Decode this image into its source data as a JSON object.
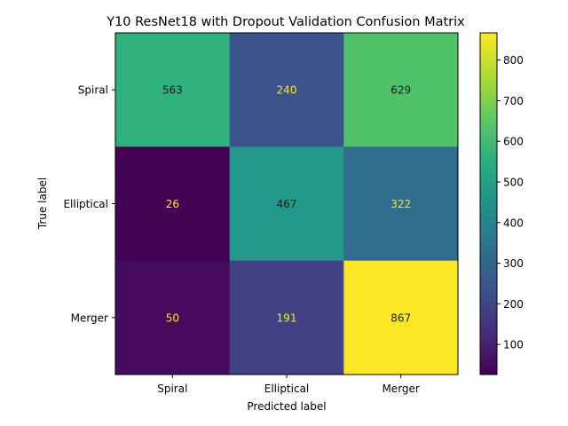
{
  "chart_data": {
    "type": "heatmap",
    "title": "Y10 ResNet18 with Dropout Validation Confusion Matrix",
    "xlabel": "Predicted label",
    "ylabel": "True label",
    "x_categories": [
      "Spiral",
      "Elliptical",
      "Merger"
    ],
    "y_categories": [
      "Spiral",
      "Elliptical",
      "Merger"
    ],
    "values": [
      [
        563,
        240,
        629
      ],
      [
        26,
        467,
        322
      ],
      [
        50,
        191,
        867
      ]
    ],
    "colormap": "viridis",
    "color_range": [
      26,
      867
    ],
    "colorbar_ticks": [
      100,
      200,
      300,
      400,
      500,
      600,
      700,
      800
    ],
    "grid": false
  },
  "colors": {
    "text_dark": "#1a1a1a",
    "text_light": "#fde725"
  }
}
